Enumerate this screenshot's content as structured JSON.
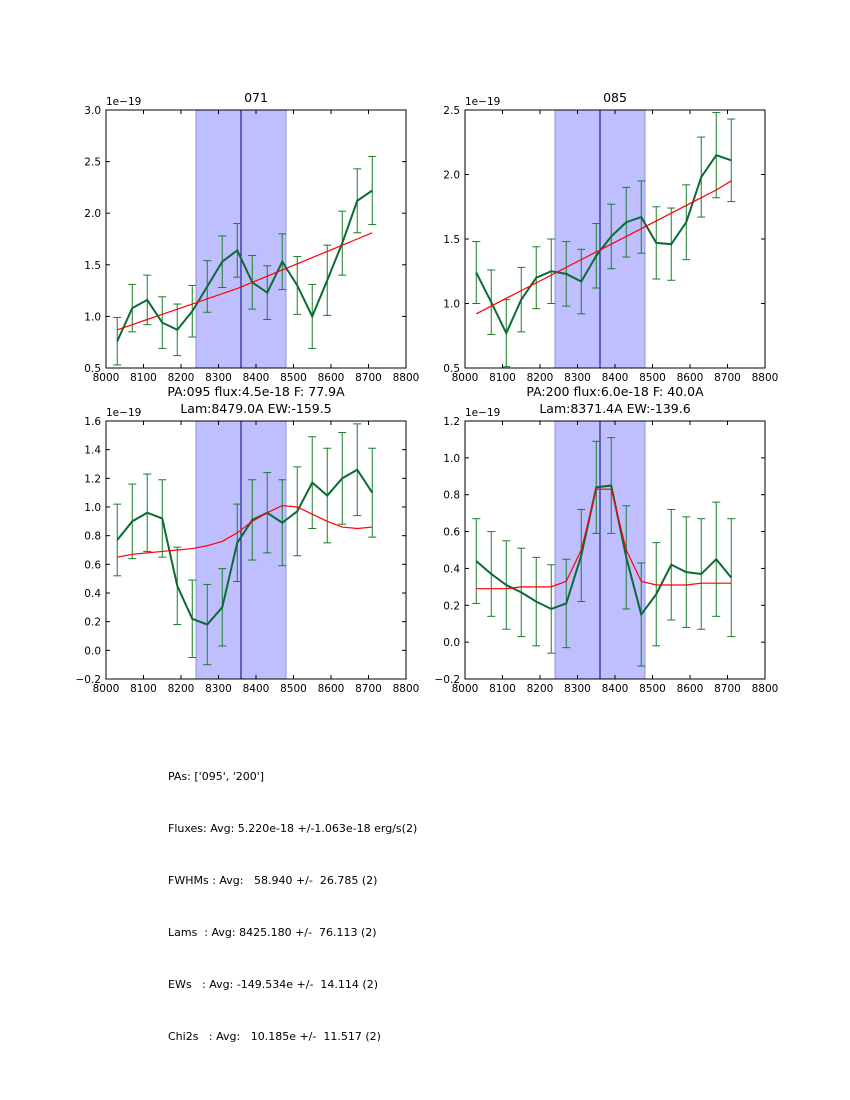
{
  "chart_data": [
    {
      "type": "line",
      "title": "071",
      "offset_label": "1e−19",
      "xlim": [
        8000,
        8800
      ],
      "ylim": [
        0.5,
        3.0
      ],
      "xticks": [
        "8000",
        "8100",
        "8200",
        "8300",
        "8400",
        "8500",
        "8600",
        "8700",
        "8800"
      ],
      "yticks": [
        "0.5",
        "1.0",
        "1.5",
        "2.0",
        "2.5",
        "3.0"
      ],
      "band": [
        8240,
        8480
      ],
      "center_line": 8360,
      "x": [
        8030,
        8070,
        8110,
        8150,
        8190,
        8230,
        8270,
        8310,
        8350,
        8390,
        8430,
        8470,
        8510,
        8550,
        8590,
        8630,
        8670,
        8710
      ],
      "series": [
        {
          "name": "data",
          "values": [
            0.76,
            1.08,
            1.16,
            0.94,
            0.87,
            1.05,
            1.29,
            1.53,
            1.64,
            1.33,
            1.23,
            1.53,
            1.3,
            1.0,
            1.35,
            1.71,
            2.12,
            2.22
          ],
          "err": [
            0.23,
            0.23,
            0.24,
            0.25,
            0.25,
            0.25,
            0.25,
            0.25,
            0.26,
            0.26,
            0.26,
            0.27,
            0.28,
            0.31,
            0.34,
            0.31,
            0.31,
            0.33
          ]
        },
        {
          "name": "fit",
          "values": [
            0.87,
            0.92,
            0.97,
            1.02,
            1.07,
            1.12,
            1.17,
            1.22,
            1.27,
            1.33,
            1.39,
            1.45,
            1.51,
            1.57,
            1.63,
            1.69,
            1.75,
            1.81
          ]
        }
      ]
    },
    {
      "type": "line",
      "title": "085",
      "offset_label": "1e−19",
      "xlim": [
        8000,
        8800
      ],
      "ylim": [
        0.5,
        2.5
      ],
      "xticks": [
        "8000",
        "8100",
        "8200",
        "8300",
        "8400",
        "8500",
        "8600",
        "8700",
        "8800"
      ],
      "yticks": [
        "0.5",
        "1.0",
        "1.5",
        "2.0",
        "2.5"
      ],
      "band": [
        8240,
        8480
      ],
      "center_line": 8360,
      "x": [
        8030,
        8070,
        8110,
        8150,
        8190,
        8230,
        8270,
        8310,
        8350,
        8390,
        8430,
        8470,
        8510,
        8550,
        8590,
        8630,
        8670,
        8710
      ],
      "series": [
        {
          "name": "data",
          "values": [
            1.24,
            1.01,
            0.77,
            1.03,
            1.2,
            1.25,
            1.23,
            1.17,
            1.37,
            1.52,
            1.63,
            1.67,
            1.47,
            1.46,
            1.63,
            1.98,
            2.15,
            2.11
          ],
          "err": [
            0.24,
            0.25,
            0.26,
            0.25,
            0.24,
            0.25,
            0.25,
            0.25,
            0.25,
            0.25,
            0.27,
            0.28,
            0.28,
            0.28,
            0.29,
            0.31,
            0.33,
            0.32
          ]
        },
        {
          "name": "fit",
          "values": [
            0.92,
            0.98,
            1.04,
            1.1,
            1.16,
            1.22,
            1.28,
            1.34,
            1.4,
            1.46,
            1.52,
            1.58,
            1.64,
            1.7,
            1.76,
            1.82,
            1.88,
            1.95
          ]
        }
      ]
    },
    {
      "type": "line",
      "title_lines": [
        "PA:095 flux:4.5e-18 F: 77.9A",
        "Lam:8479.0A EW:-159.5"
      ],
      "offset_label": "1e−19",
      "xlim": [
        8000,
        8800
      ],
      "ylim": [
        -0.2,
        1.6
      ],
      "xticks": [
        "8000",
        "8100",
        "8200",
        "8300",
        "8400",
        "8500",
        "8600",
        "8700",
        "8800"
      ],
      "yticks": [
        "−0.2",
        "0.0",
        "0.2",
        "0.4",
        "0.6",
        "0.8",
        "1.0",
        "1.2",
        "1.4",
        "1.6"
      ],
      "band": [
        8240,
        8480
      ],
      "center_line": 8360,
      "x": [
        8030,
        8070,
        8110,
        8150,
        8190,
        8230,
        8270,
        8310,
        8350,
        8390,
        8430,
        8470,
        8510,
        8550,
        8590,
        8630,
        8670,
        8710
      ],
      "series": [
        {
          "name": "data",
          "values": [
            0.77,
            0.9,
            0.96,
            0.92,
            0.45,
            0.22,
            0.18,
            0.3,
            0.75,
            0.91,
            0.96,
            0.89,
            0.97,
            1.17,
            1.08,
            1.2,
            1.26,
            1.1
          ],
          "err": [
            0.25,
            0.26,
            0.27,
            0.27,
            0.27,
            0.27,
            0.28,
            0.27,
            0.27,
            0.28,
            0.28,
            0.3,
            0.31,
            0.32,
            0.33,
            0.32,
            0.32,
            0.31
          ]
        },
        {
          "name": "fit",
          "values": [
            0.65,
            0.67,
            0.68,
            0.69,
            0.7,
            0.71,
            0.73,
            0.76,
            0.82,
            0.9,
            0.96,
            1.01,
            1.0,
            0.95,
            0.9,
            0.86,
            0.85,
            0.86
          ]
        }
      ]
    },
    {
      "type": "line",
      "title_lines": [
        "PA:200 flux:6.0e-18 F: 40.0A",
        "Lam:8371.4A EW:-139.6"
      ],
      "offset_label": "1e−19",
      "xlim": [
        8000,
        8800
      ],
      "ylim": [
        -0.2,
        1.2
      ],
      "xticks": [
        "8000",
        "8100",
        "8200",
        "8300",
        "8400",
        "8500",
        "8600",
        "8700",
        "8800"
      ],
      "yticks": [
        "−0.2",
        "0.0",
        "0.2",
        "0.4",
        "0.6",
        "0.8",
        "1.0",
        "1.2"
      ],
      "band": [
        8240,
        8480
      ],
      "center_line": 8360,
      "x": [
        8030,
        8070,
        8110,
        8150,
        8190,
        8230,
        8270,
        8310,
        8350,
        8390,
        8430,
        8470,
        8510,
        8550,
        8590,
        8630,
        8670,
        8710
      ],
      "series": [
        {
          "name": "data",
          "values": [
            0.44,
            0.37,
            0.31,
            0.27,
            0.22,
            0.18,
            0.21,
            0.47,
            0.84,
            0.85,
            0.46,
            0.15,
            0.26,
            0.42,
            0.38,
            0.37,
            0.45,
            0.35
          ],
          "err": [
            0.23,
            0.23,
            0.24,
            0.24,
            0.24,
            0.24,
            0.24,
            0.25,
            0.25,
            0.26,
            0.28,
            0.28,
            0.28,
            0.3,
            0.3,
            0.3,
            0.31,
            0.32
          ]
        },
        {
          "name": "fit",
          "values": [
            0.29,
            0.29,
            0.29,
            0.3,
            0.3,
            0.3,
            0.33,
            0.5,
            0.83,
            0.83,
            0.5,
            0.33,
            0.31,
            0.31,
            0.31,
            0.32,
            0.32,
            0.32
          ]
        }
      ]
    }
  ],
  "summary": {
    "pas": "PAs: ['095', '200']",
    "fluxes": "Fluxes: Avg: 5.220e-18 +/-1.063e-18 erg/s(2)",
    "fwhms": "FWHMs : Avg:   58.940 +/-  26.785 (2)",
    "lams": "Lams  : Avg: 8425.180 +/-  76.113 (2)",
    "ews": "EWs   : Avg: -149.534e +/-  14.114 (2)",
    "chi2s": "Chi2s   : Avg:   10.185e +/-  11.517 (2)"
  },
  "colors": {
    "data": "#0b6b35",
    "err": "#1a7d2a",
    "fit": "#ff0000",
    "band": "#bfbfff",
    "band_edge": "#8080d0",
    "center": "#00007f"
  }
}
